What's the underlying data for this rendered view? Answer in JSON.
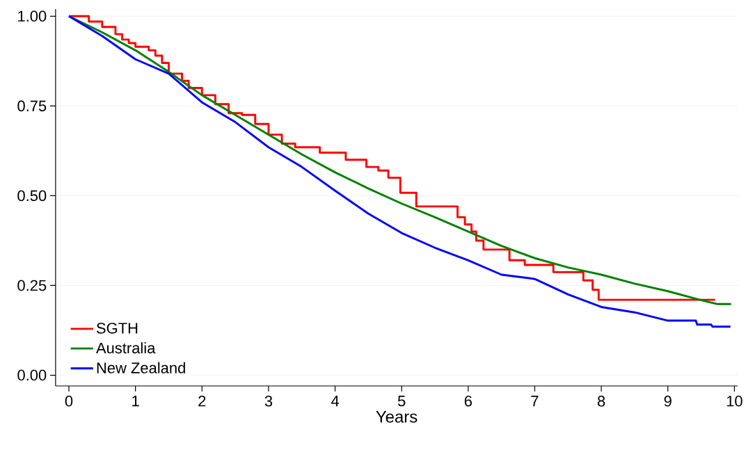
{
  "chart_data": {
    "type": "line",
    "xlabel": "Years",
    "xlim": [
      -0.2,
      10.05
    ],
    "ylim": [
      -0.03,
      1.02
    ],
    "xticks": [
      0,
      1,
      2,
      3,
      4,
      5,
      6,
      7,
      8,
      9,
      10
    ],
    "yticks": [
      {
        "value": 0,
        "label": "0.00"
      },
      {
        "value": 0.25,
        "label": "0.25"
      },
      {
        "value": 0.5,
        "label": "0.50"
      },
      {
        "value": 0.75,
        "label": "0.75"
      },
      {
        "value": 1,
        "label": "1.00"
      }
    ],
    "grid": "y",
    "legend": "bottom left",
    "series": [
      {
        "name": "SGTH",
        "type": "step",
        "color": "#ff0000",
        "x": [
          0,
          0.3,
          0.5,
          0.7,
          0.8,
          0.9,
          1.0,
          1.2,
          1.3,
          1.4,
          1.5,
          1.7,
          1.8,
          2.0,
          2.2,
          2.4,
          2.6,
          2.8,
          3.0,
          3.2,
          3.4,
          3.77,
          4.16,
          4.47,
          4.65,
          4.8,
          4.98,
          5.22,
          5.84,
          5.95,
          6.05,
          6.12,
          6.23,
          6.62,
          6.85,
          7.28,
          7.73,
          7.87,
          7.96,
          9.71
        ],
        "values": [
          1.0,
          0.985,
          0.97,
          0.95,
          0.935,
          0.925,
          0.915,
          0.905,
          0.89,
          0.87,
          0.84,
          0.82,
          0.8,
          0.78,
          0.755,
          0.73,
          0.725,
          0.7,
          0.67,
          0.645,
          0.635,
          0.62,
          0.6,
          0.58,
          0.57,
          0.55,
          0.508,
          0.47,
          0.44,
          0.42,
          0.4,
          0.375,
          0.35,
          0.32,
          0.307,
          0.287,
          0.264,
          0.238,
          0.21,
          0.21
        ]
      },
      {
        "name": "Australia",
        "color": "#008000",
        "x": [
          0,
          0.5,
          1,
          1.5,
          2,
          2.5,
          3,
          3.5,
          4,
          4.5,
          5,
          5.5,
          6,
          6.5,
          7,
          7.5,
          8,
          8.5,
          9,
          9.5,
          9.75,
          9.95
        ],
        "values": [
          1.0,
          0.955,
          0.905,
          0.845,
          0.78,
          0.725,
          0.67,
          0.615,
          0.565,
          0.52,
          0.478,
          0.44,
          0.4,
          0.36,
          0.326,
          0.3,
          0.28,
          0.255,
          0.234,
          0.209,
          0.198,
          0.198
        ]
      },
      {
        "name": "New Zealand",
        "color": "#0000ff",
        "x": [
          0,
          0.5,
          1,
          1.5,
          2,
          2.5,
          3,
          3.5,
          4,
          4.5,
          5,
          5.5,
          6,
          6.5,
          7,
          7.5,
          8,
          8.5,
          9,
          9.42,
          9.44,
          9.65,
          9.67,
          9.94
        ],
        "values": [
          1.0,
          0.945,
          0.88,
          0.84,
          0.76,
          0.705,
          0.635,
          0.58,
          0.514,
          0.45,
          0.396,
          0.355,
          0.32,
          0.28,
          0.268,
          0.225,
          0.19,
          0.175,
          0.152,
          0.152,
          0.141,
          0.141,
          0.135,
          0.135
        ]
      }
    ]
  }
}
